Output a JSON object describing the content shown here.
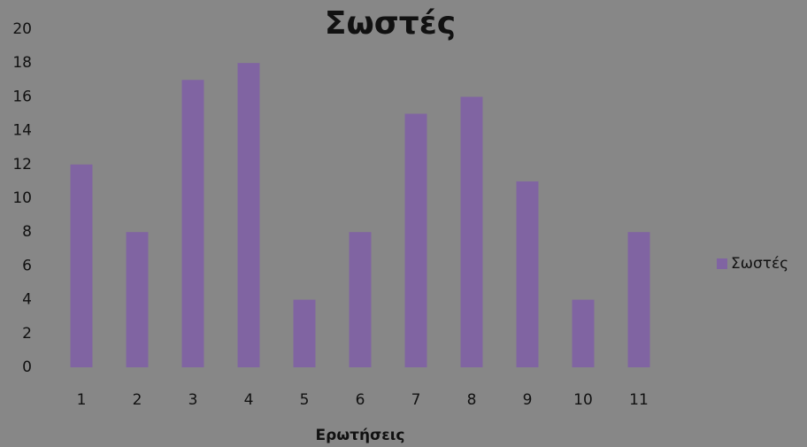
{
  "chart_data": {
    "type": "bar",
    "title": "Σωστές",
    "x_label": "Ερωτήσεις",
    "categories": [
      "1",
      "2",
      "3",
      "4",
      "5",
      "6",
      "7",
      "8",
      "9",
      "10",
      "11"
    ],
    "series": [
      {
        "name": "Σωστές",
        "color": "#8064a2",
        "values": [
          12,
          8,
          17,
          18,
          4,
          8,
          15,
          16,
          11,
          4,
          8
        ]
      }
    ],
    "ylim": [
      0,
      20
    ],
    "yticks": [
      0,
      2,
      4,
      6,
      8,
      10,
      12,
      14,
      16,
      18,
      20
    ],
    "grid": false,
    "legend": "right"
  }
}
